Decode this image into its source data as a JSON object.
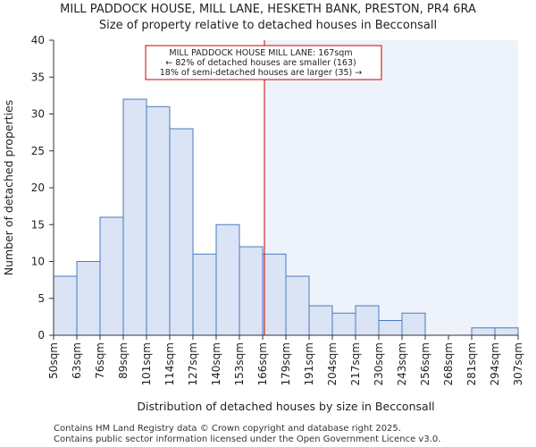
{
  "chart_data": {
    "type": "bar",
    "title": "MILL PADDOCK HOUSE, MILL LANE, HESKETH BANK, PRESTON, PR4 6RA",
    "subtitle": "Size of property relative to detached houses in Becconsall",
    "xlabel": "Distribution of detached houses by size in Becconsall",
    "ylabel": "Number of detached properties",
    "x_tick_labels": [
      "50sqm",
      "63sqm",
      "76sqm",
      "89sqm",
      "101sqm",
      "114sqm",
      "127sqm",
      "140sqm",
      "153sqm",
      "166sqm",
      "179sqm",
      "191sqm",
      "204sqm",
      "217sqm",
      "230sqm",
      "243sqm",
      "256sqm",
      "268sqm",
      "281sqm",
      "294sqm",
      "307sqm"
    ],
    "values": [
      8,
      10,
      16,
      32,
      31,
      28,
      11,
      15,
      12,
      11,
      8,
      4,
      3,
      4,
      2,
      3,
      0,
      0,
      1,
      1
    ],
    "y_ticks": [
      0,
      5,
      10,
      15,
      20,
      25,
      30,
      35,
      40
    ],
    "ylim": [
      0,
      40
    ],
    "grid": false,
    "property_marker": {
      "value_sqm": 167,
      "color": "#cc0000"
    },
    "annotation": {
      "line1": "MILL PADDOCK HOUSE MILL LANE: 167sqm",
      "line2": "← 82% of detached houses are smaller (163)",
      "line3": "18% of semi-detached houses are larger (35) →"
    },
    "colors": {
      "bar_fill": "#dae4f5",
      "bar_stroke": "#4a7ac0",
      "shade_fill": "#eef2fb",
      "annotation_border": "#cc0000"
    }
  },
  "footer": {
    "line1": "Contains HM Land Registry data © Crown copyright and database right 2025.",
    "line2": "Contains public sector information licensed under the Open Government Licence v3.0."
  }
}
